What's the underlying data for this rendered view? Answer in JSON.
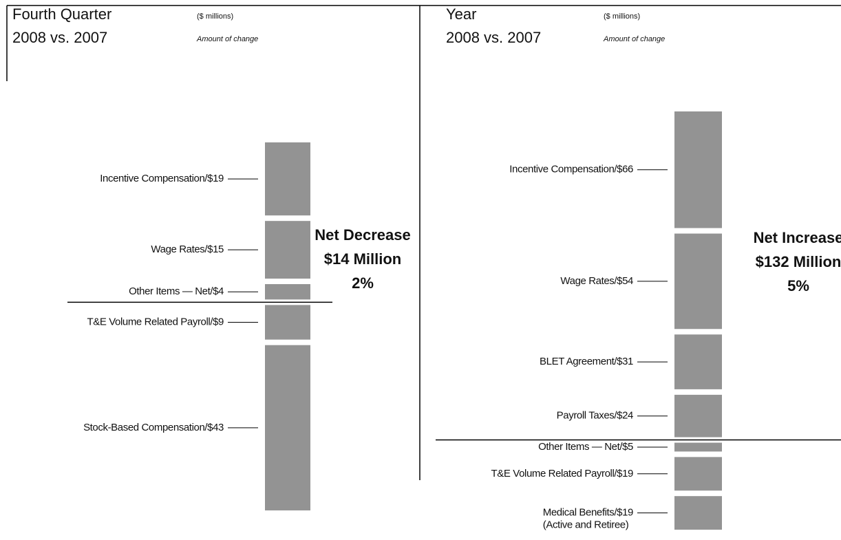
{
  "chart_data": [
    {
      "type": "waterfall",
      "title": [
        "Fourth Quarter",
        "2008 vs. 2007"
      ],
      "units": "($ millions)",
      "subtitle": "Amount of change",
      "increases": {
        "categories": [
          "Incentive Compensation/$19",
          "Wage Rates/$15",
          "Other Items — Net/$4"
        ],
        "values": [
          19,
          15,
          4
        ]
      },
      "decreases": {
        "categories": [
          "T&E Volume Related Payroll/$9",
          "Stock-Based Compensation/$43"
        ],
        "values": [
          9,
          43
        ]
      },
      "annotation": [
        "Net Decrease",
        "$14 Million",
        "2%"
      ],
      "color": "#939393"
    },
    {
      "type": "waterfall",
      "title": [
        "Year",
        "2008 vs. 2007"
      ],
      "units": "($ millions)",
      "subtitle": "Amount of change",
      "increases": {
        "categories": [
          "Incentive Compensation/$66",
          "Wage Rates/$54",
          "BLET Agreement/$31",
          "Payroll Taxes/$24"
        ],
        "values": [
          66,
          54,
          31,
          24
        ]
      },
      "decreases": {
        "categories": [
          "Other Items — Net/$5",
          "T&E Volume Related Payroll/$19",
          "Medical Benefits/$19"
        ],
        "values": [
          5,
          19,
          19
        ],
        "note": "(Active and Retiree)"
      },
      "annotation": [
        "Net Increase",
        "$132 Million",
        "5%"
      ],
      "color": "#939393"
    }
  ]
}
